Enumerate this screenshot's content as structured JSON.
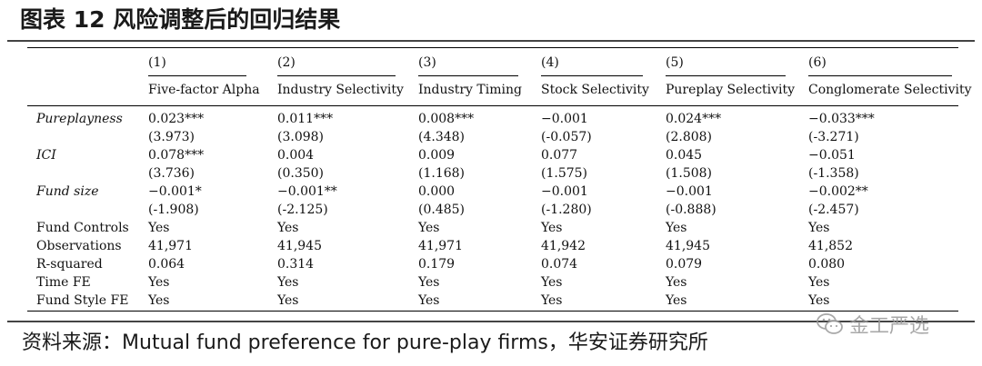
{
  "title": "图表 12  风险调整后的回归结果",
  "columns": [
    {
      "num": "(1)",
      "title": "Five-factor Alpha"
    },
    {
      "num": "(2)",
      "title": "Industry Selectivity"
    },
    {
      "num": "(3)",
      "title": "Industry Timing"
    },
    {
      "num": "(4)",
      "title": "Stock Selectivity"
    },
    {
      "num": "(5)",
      "title": "Pureplay Selectivity"
    },
    {
      "num": "(6)",
      "title": "Conglomerate Selectivity"
    }
  ],
  "rows": [
    {
      "label": "Pureplayness",
      "values": [
        "0.023***",
        "0.011***",
        "0.008***",
        "−0.001",
        "0.024***",
        "−0.033***"
      ]
    },
    {
      "label": "",
      "values": [
        "(3.973)",
        "(3.098)",
        "(4.348)",
        "(-0.057)",
        "(2.808)",
        "(-3.271)"
      ]
    },
    {
      "label": "ICI",
      "values": [
        "0.078***",
        "0.004",
        "0.009",
        "0.077",
        "0.045",
        "−0.051"
      ]
    },
    {
      "label": "",
      "values": [
        "(3.736)",
        "(0.350)",
        "(1.168)",
        "(1.575)",
        "(1.508)",
        "(-1.358)"
      ]
    },
    {
      "label": "Fund size",
      "values": [
        "−0.001*",
        "−0.001**",
        "0.000",
        "−0.001",
        "−0.001",
        "−0.002**"
      ]
    },
    {
      "label": "",
      "values": [
        "(-1.908)",
        "(-2.125)",
        "(0.485)",
        "(-1.280)",
        "(-0.888)",
        "(-2.457)"
      ]
    },
    {
      "label": "Fund Controls",
      "values": [
        "Yes",
        "Yes",
        "Yes",
        "Yes",
        "Yes",
        "Yes"
      ]
    },
    {
      "label": "Observations",
      "values": [
        "41,971",
        "41,945",
        "41,971",
        "41,942",
        "41,945",
        "41,852"
      ]
    },
    {
      "label": "R-squared",
      "values": [
        "0.064",
        "0.314",
        "0.179",
        "0.074",
        "0.079",
        "0.080"
      ]
    },
    {
      "label": "Time FE",
      "values": [
        "Yes",
        "Yes",
        "Yes",
        "Yes",
        "Yes",
        "Yes"
      ]
    },
    {
      "label": "Fund Style FE",
      "values": [
        "Yes",
        "Yes",
        "Yes",
        "Yes",
        "Yes",
        "Yes"
      ]
    }
  ],
  "italic_labels": [
    "Pureplayness",
    "ICI",
    "Fund size"
  ],
  "source_label": "资料来源：",
  "source_text": "Mutual fund preference for pure-play firms，华安证券研究所",
  "watermark": "金工严选",
  "watermark_icon": "wechat-icon",
  "colors": {
    "rule": "#444444",
    "watermark": "#9a9a9a"
  }
}
